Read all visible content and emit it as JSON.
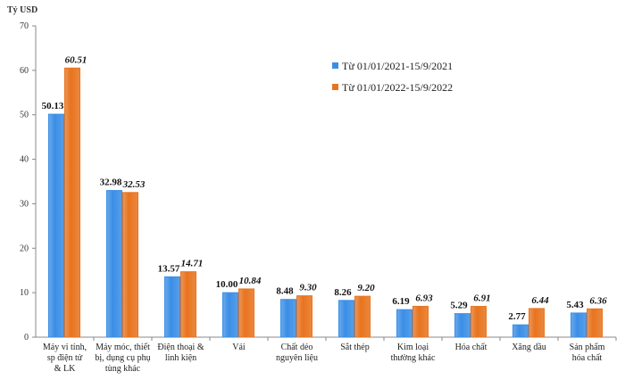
{
  "chart_data": {
    "type": "bar",
    "ylabel": "Tỷ USD",
    "ylim": [
      0,
      70
    ],
    "yticks": [
      0,
      10,
      20,
      30,
      40,
      50,
      60,
      70
    ],
    "grid": false,
    "legend_position": "top-right",
    "categories": [
      [
        "Máy vi tính,",
        "sp điện tử",
        "& LK"
      ],
      [
        "Máy móc, thiết",
        "bị, dụng cụ phụ",
        "tùng khác"
      ],
      [
        "Điện thoại &",
        "linh kiện"
      ],
      [
        "Vải"
      ],
      [
        "Chất dẻo",
        "nguyên liệu"
      ],
      [
        "Sắt thép"
      ],
      [
        "Kim loại",
        "thường khác"
      ],
      [
        "Hóa chất"
      ],
      [
        "Xăng dầu"
      ],
      [
        "Sản phẩm",
        "hóa chất"
      ]
    ],
    "series": [
      {
        "name": "Từ 01/01/2021-15/9/2021",
        "color": "#3A8EE6",
        "values": [
          50.13,
          32.98,
          13.57,
          10.0,
          8.48,
          8.26,
          6.19,
          5.29,
          2.77,
          5.43
        ],
        "labels": [
          "50.13",
          "32.98",
          "13.57",
          "10.00",
          "8.48",
          "8.26",
          "6.19",
          "5.29",
          "2.77",
          "5.43"
        ]
      },
      {
        "name": "Từ 01/01/2022-15/9/2022",
        "color": "#E8731E",
        "values": [
          60.51,
          32.53,
          14.71,
          10.84,
          9.3,
          9.2,
          6.93,
          6.91,
          6.44,
          6.36
        ],
        "labels": [
          "60.51",
          "32.53",
          "14.71",
          "10.84",
          "9.30",
          "9.20",
          "6.93",
          "6.91",
          "6.44",
          "6.36"
        ]
      }
    ]
  }
}
